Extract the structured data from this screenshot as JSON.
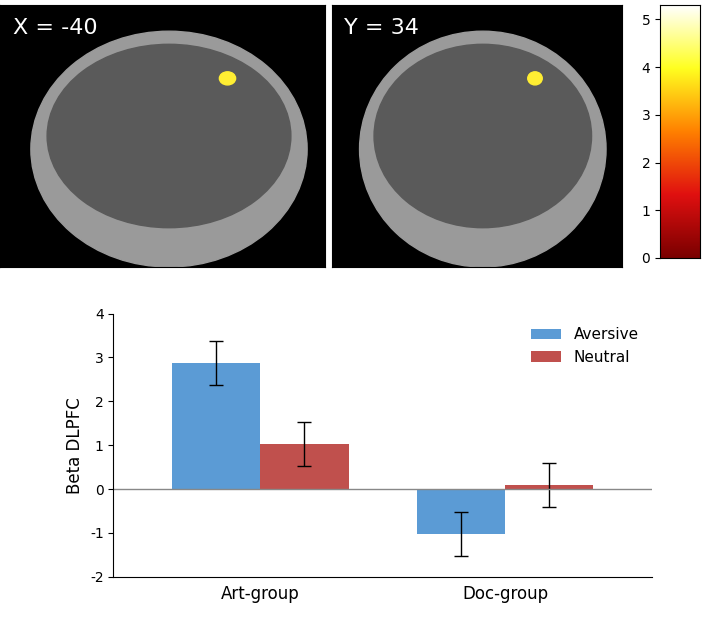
{
  "chart_data": [
    {
      "type": "image",
      "title": "X = -40"
    },
    {
      "type": "image",
      "title": "Y = 34"
    },
    {
      "type": "colorbar",
      "ylim": [
        0,
        5.3
      ],
      "yticks": [
        0,
        1,
        2,
        3,
        4,
        5
      ]
    },
    {
      "type": "bar",
      "y_label": "Beta DLPFC",
      "categories": [
        "Art-group",
        "Doc-group"
      ],
      "series": [
        {
          "name": "Aversive",
          "color": "#5b9bd5",
          "values": [
            2.87,
            -1.02
          ],
          "errors": [
            0.5,
            0.5
          ]
        },
        {
          "name": "Neutral",
          "color": "#c0504d",
          "values": [
            1.02,
            0.1
          ],
          "errors": [
            0.5,
            0.5
          ]
        }
      ],
      "ylim": [
        -2,
        4
      ],
      "yticks": [
        -2,
        -1,
        0,
        1,
        2,
        3,
        4
      ],
      "legend": "upper right",
      "grid": false
    }
  ]
}
